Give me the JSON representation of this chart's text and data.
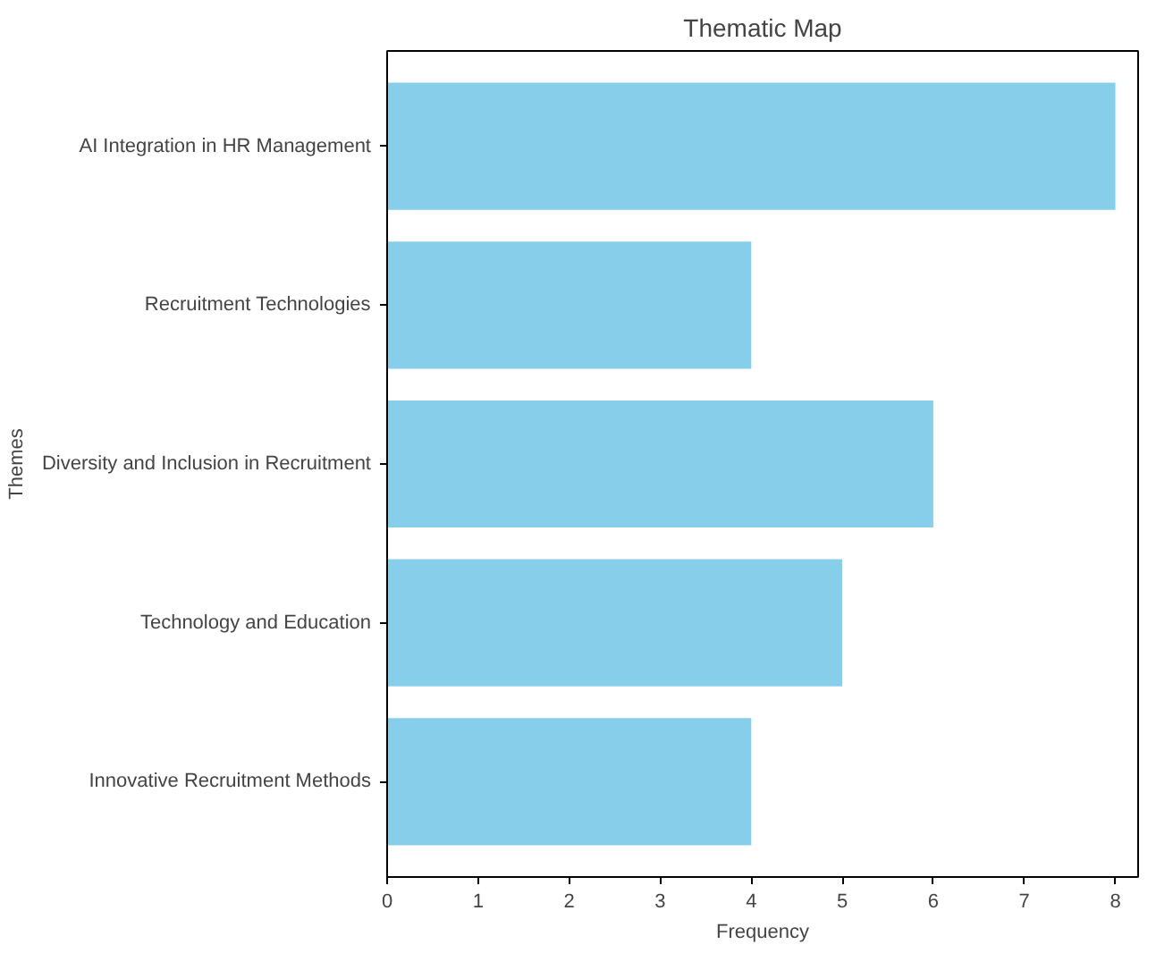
{
  "chart_data": {
    "type": "bar",
    "orientation": "horizontal",
    "title": "Thematic Map",
    "xlabel": "Frequency",
    "ylabel": "Themes",
    "categories": [
      "AI Integration in HR Management",
      "Recruitment Technologies",
      "Diversity and Inclusion in Recruitment",
      "Technology and Education",
      "Innovative Recruitment Methods"
    ],
    "values": [
      8,
      4,
      6,
      5,
      4
    ],
    "color": "#87ceeb",
    "xlim": [
      0,
      8.25
    ],
    "xticks": [
      0,
      1,
      2,
      3,
      4,
      5,
      6,
      7,
      8
    ],
    "grid": false
  }
}
